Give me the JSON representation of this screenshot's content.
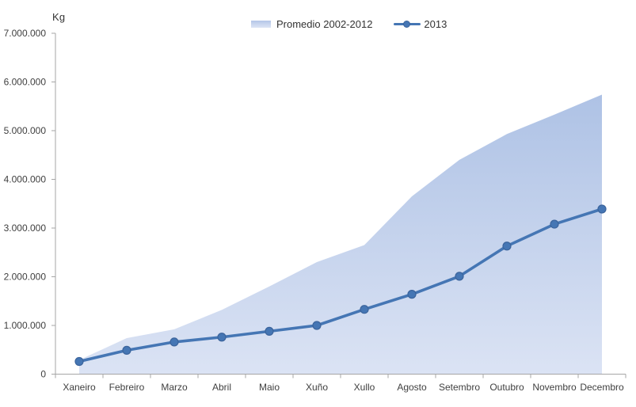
{
  "chart_data": {
    "type": "area",
    "subtype": "area-plus-line-combo",
    "title": "",
    "ylabel": "Kg",
    "xlabel": "",
    "ylim": [
      0,
      7000000
    ],
    "y_tick_interval": 1000000,
    "y_tick_labels": [
      "7.000.000",
      "6.000.000",
      "5.000.000",
      "4.000.000",
      "3.000.000",
      "2.000.000",
      "1.000.000",
      "0"
    ],
    "grid": "off",
    "legend_position": "top-center",
    "categories": [
      "Xaneiro",
      "Febreiro",
      "Marzo",
      "Abril",
      "Maio",
      "Xuño",
      "Xullo",
      "Agosto",
      "Setembro",
      "Outubro",
      "Novembro",
      "Decembro"
    ],
    "series": [
      {
        "name": "Promedio 2002-2012",
        "type": "area",
        "values": [
          290000,
          740000,
          920000,
          1320000,
          1800000,
          2300000,
          2650000,
          3650000,
          4400000,
          4930000,
          5330000,
          5740000
        ],
        "color_top": "#aec2e5",
        "color_bottom": "#dbe3f4"
      },
      {
        "name": "2013",
        "type": "line",
        "values": [
          260000,
          490000,
          660000,
          760000,
          880000,
          1000000,
          1330000,
          1640000,
          2010000,
          2630000,
          3080000,
          3390000
        ],
        "color": "#4576b4",
        "marker_edge_color": "#3b649c"
      }
    ],
    "axis_color": "#a6a6a6",
    "tick_label_color": "#3f3f3f"
  },
  "legend": {
    "promedio_label": "Promedio 2002-2012",
    "line_label": "2013"
  },
  "axis_title": "Kg"
}
